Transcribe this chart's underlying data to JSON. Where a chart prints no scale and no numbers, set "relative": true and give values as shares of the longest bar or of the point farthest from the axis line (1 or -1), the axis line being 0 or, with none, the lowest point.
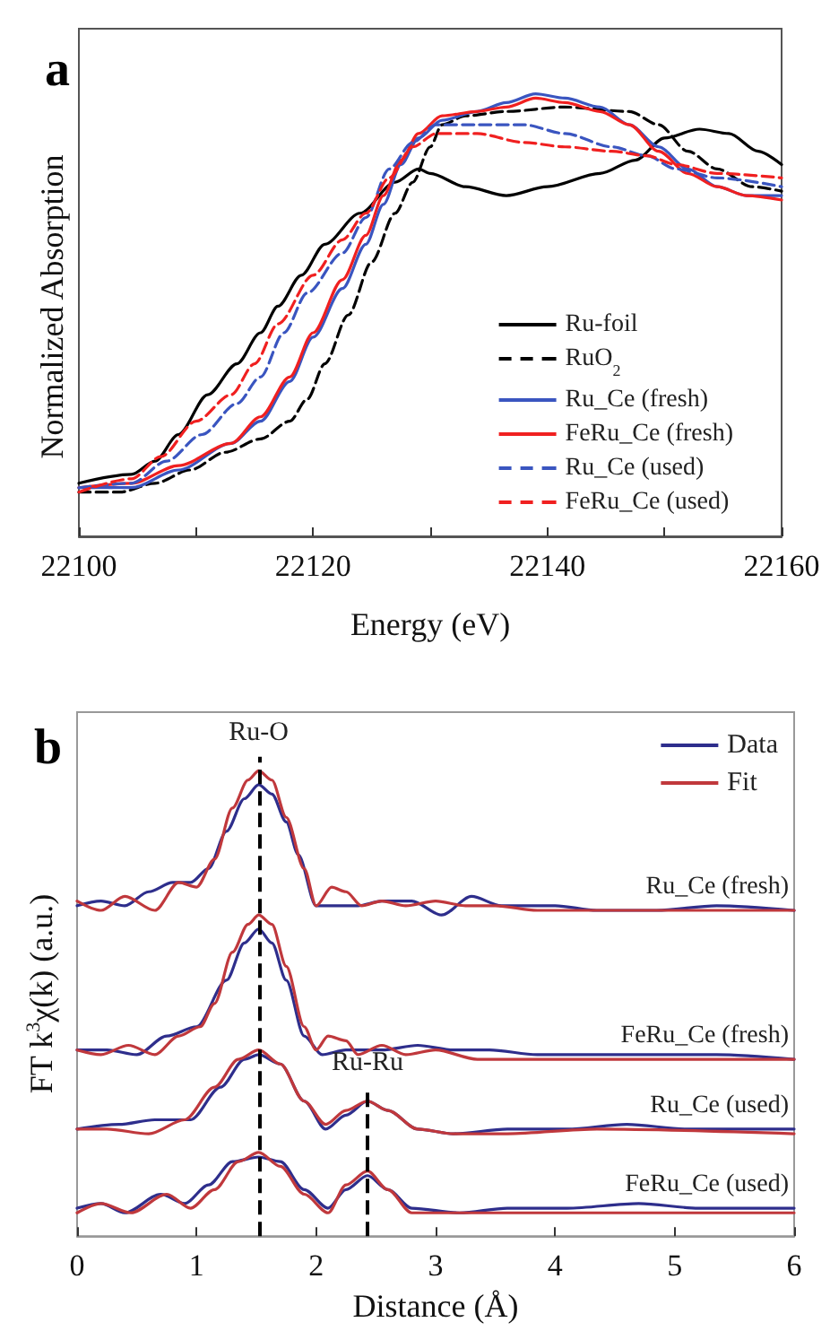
{
  "chart_data": [
    {
      "type": "line",
      "title": "a",
      "xlabel": "Energy (eV)",
      "ylabel": "Normalized Absorption",
      "relative": true,
      "tick_labels": "x",
      "marker": "none",
      "legend": "bottom right",
      "xlim": [
        22100,
        22160
      ],
      "xticks": [
        22100,
        {
          "value": 22110,
          "label": null
        },
        22120,
        {
          "value": 22130,
          "label": null
        },
        22140,
        {
          "value": 22150,
          "label": null
        },
        22160
      ],
      "series": [
        {
          "name": "Ru-foil",
          "color": "#000000",
          "line_style": "solid",
          "x": [
            22100,
            22104.5,
            22106.5,
            22108.5,
            22111,
            22113.5,
            22115.5,
            22117,
            22119,
            22121,
            22124,
            22127,
            22129,
            22130,
            22133,
            22136.5,
            22140,
            22144.5,
            22147.5,
            22150,
            22153,
            22155.5,
            22158,
            22160
          ],
          "values": [
            0.12,
            0.14,
            0.17,
            0.23,
            0.32,
            0.39,
            0.46,
            0.52,
            0.59,
            0.66,
            0.73,
            0.8,
            0.83,
            0.82,
            0.79,
            0.77,
            0.79,
            0.82,
            0.85,
            0.9,
            0.92,
            0.91,
            0.87,
            0.84
          ]
        },
        {
          "name": "RuO$_{2}$",
          "color": "#000000",
          "line_style": "dashed",
          "x": [
            22100,
            22103.5,
            22106.5,
            22109.5,
            22112.5,
            22115.5,
            22118,
            22119.5,
            22121,
            22123,
            22125,
            22127,
            22128.5,
            22130,
            22131,
            22133,
            22136.5,
            22141.5,
            22147,
            22149.5,
            22152,
            22154.5,
            22157.5,
            22160
          ],
          "values": [
            0.1,
            0.1,
            0.12,
            0.15,
            0.19,
            0.22,
            0.26,
            0.31,
            0.39,
            0.5,
            0.62,
            0.73,
            0.8,
            0.88,
            0.93,
            0.95,
            0.96,
            0.97,
            0.96,
            0.93,
            0.87,
            0.83,
            0.79,
            0.78
          ]
        },
        {
          "name": "Ru_Ce (fresh)",
          "color": "#3a55c0",
          "line_style": "solid",
          "x": [
            22100,
            22104.5,
            22108.5,
            22113,
            22115.5,
            22118,
            22120,
            22122.5,
            22124.5,
            22126,
            22127.5,
            22129,
            22131,
            22134,
            22136.5,
            22139,
            22141.5,
            22144.5,
            22147,
            22149.5,
            22152,
            22154.5,
            22157,
            22160
          ],
          "values": [
            0.11,
            0.11,
            0.15,
            0.21,
            0.26,
            0.35,
            0.45,
            0.56,
            0.66,
            0.75,
            0.84,
            0.9,
            0.94,
            0.96,
            0.98,
            1,
            0.99,
            0.97,
            0.93,
            0.88,
            0.83,
            0.79,
            0.77,
            0.77
          ]
        },
        {
          "name": "FeRu_Ce (fresh)",
          "color": "#f02020",
          "line_style": "solid",
          "x": [
            22100,
            22104.5,
            22108.5,
            22113,
            22115.5,
            22118,
            22120,
            22122.5,
            22124.5,
            22126,
            22127.5,
            22129,
            22131,
            22134,
            22136.5,
            22139,
            22141.5,
            22144.5,
            22147,
            22149.5,
            22152,
            22154.5,
            22157,
            22160
          ],
          "values": [
            0.11,
            0.12,
            0.16,
            0.21,
            0.27,
            0.36,
            0.46,
            0.58,
            0.68,
            0.77,
            0.85,
            0.91,
            0.95,
            0.96,
            0.97,
            0.99,
            0.98,
            0.96,
            0.93,
            0.87,
            0.82,
            0.79,
            0.77,
            0.76
          ]
        },
        {
          "name": "Ru_Ce (used)",
          "color": "#3a55c0",
          "line_style": "dashed",
          "x": [
            22100,
            22104.5,
            22107.5,
            22110.5,
            22113.5,
            22115.5,
            22117.5,
            22119.5,
            22122.5,
            22124.5,
            22126.5,
            22128.5,
            22130.5,
            22134,
            22138,
            22141.5,
            22145.5,
            22148.5,
            22151,
            22154.5,
            22160
          ],
          "values": [
            0.11,
            0.12,
            0.17,
            0.23,
            0.3,
            0.36,
            0.46,
            0.55,
            0.64,
            0.72,
            0.83,
            0.89,
            0.93,
            0.93,
            0.93,
            0.91,
            0.88,
            0.86,
            0.83,
            0.81,
            0.79
          ]
        },
        {
          "name": "FeRu_Ce (used)",
          "color": "#f02020",
          "line_style": "dashed",
          "x": [
            22100,
            22104.5,
            22107,
            22110,
            22113,
            22115,
            22117,
            22120,
            22122.5,
            22124.5,
            22126.5,
            22128.5,
            22130.5,
            22134,
            22138,
            22141.5,
            22145.5,
            22148.5,
            22151,
            22154.5,
            22160
          ],
          "values": [
            0.1,
            0.13,
            0.18,
            0.26,
            0.32,
            0.39,
            0.48,
            0.59,
            0.67,
            0.73,
            0.81,
            0.88,
            0.91,
            0.91,
            0.89,
            0.88,
            0.87,
            0.86,
            0.84,
            0.82,
            0.81
          ]
        }
      ]
    },
    {
      "type": "line",
      "title": "b",
      "xlabel": "Distance (Å)",
      "ylabel": "FT k$^{3}$χ(k) (a.u.)",
      "relative": true,
      "tick_labels": "x",
      "marker": "none",
      "legend": "top right",
      "xlim": [
        0,
        6
      ],
      "xticks": [
        0,
        1,
        2,
        3,
        4,
        5,
        6
      ],
      "ref_lines": [
        {
          "axis": "x",
          "value": 1.52,
          "label": "Ru-O",
          "color": "#000000",
          "line_style": "dashed"
        },
        {
          "axis": "x",
          "value": 2.43,
          "label": "Ru-Ru",
          "color": "#000000",
          "line_style": "dashed"
        }
      ],
      "annotations": [
        "Ru_Ce (fresh)",
        "FeRu_Ce (fresh)",
        "Ru_Ce (used)",
        "FeRu_Ce (used)"
      ],
      "series": [
        {
          "name": "Data",
          "color": "#2e2e8c",
          "x": [
            0,
            0.2,
            0.4,
            0.6,
            0.8,
            0.95,
            1.1,
            1.25,
            1.4,
            1.52,
            1.63,
            1.75,
            1.85,
            2,
            2.15,
            2.35,
            2.55,
            2.8,
            3.05,
            3.3,
            3.55,
            3.75,
            4,
            4.35,
            4.85,
            5.35,
            6
          ],
          "values": [
            0.71,
            0.72,
            0.71,
            0.74,
            0.76,
            0.76,
            0.79,
            0.87,
            0.94,
            0.97,
            0.95,
            0.89,
            0.82,
            0.71,
            0.71,
            0.71,
            0.72,
            0.72,
            0.69,
            0.73,
            0.71,
            0.71,
            0.71,
            0.7,
            0.7,
            0.71,
            0.7
          ]
        },
        {
          "name": "Fit",
          "color": "#c0383c",
          "x": [
            0,
            0.2,
            0.4,
            0.65,
            0.85,
            1,
            1.15,
            1.3,
            1.43,
            1.52,
            1.63,
            1.75,
            1.9,
            2,
            2.13,
            2.25,
            2.38,
            2.55,
            2.75,
            3,
            3.25,
            3.5,
            3.85,
            4.35,
            5.35,
            6
          ],
          "values": [
            0.72,
            0.7,
            0.73,
            0.7,
            0.76,
            0.75,
            0.81,
            0.92,
            0.98,
            1,
            0.98,
            0.9,
            0.79,
            0.71,
            0.75,
            0.74,
            0.71,
            0.72,
            0.71,
            0.72,
            0.71,
            0.71,
            0.7,
            0.7,
            0.7,
            0.7
          ]
        },
        {
          "color": "#2e2e8c",
          "x": [
            0,
            0.25,
            0.5,
            0.75,
            1,
            1.25,
            1.4,
            1.52,
            1.63,
            1.75,
            1.9,
            2.05,
            2.25,
            2.55,
            2.85,
            3.15,
            3.45,
            3.85,
            4.35,
            4.85,
            5.35,
            6
          ],
          "values": [
            0.4,
            0.4,
            0.39,
            0.43,
            0.45,
            0.55,
            0.63,
            0.66,
            0.63,
            0.55,
            0.43,
            0.39,
            0.4,
            0.4,
            0.41,
            0.4,
            0.4,
            0.39,
            0.39,
            0.39,
            0.39,
            0.38
          ]
        },
        {
          "color": "#c0383c",
          "x": [
            0,
            0.2,
            0.43,
            0.65,
            0.85,
            1.03,
            1.15,
            1.3,
            1.43,
            1.52,
            1.63,
            1.75,
            1.9,
            2,
            2.1,
            2.25,
            2.35,
            2.55,
            2.75,
            3,
            3.35,
            3.85,
            4.85,
            6
          ],
          "values": [
            0.4,
            0.39,
            0.41,
            0.39,
            0.43,
            0.45,
            0.5,
            0.61,
            0.67,
            0.69,
            0.67,
            0.58,
            0.45,
            0.4,
            0.43,
            0.42,
            0.39,
            0.41,
            0.39,
            0.4,
            0.38,
            0.38,
            0.38,
            0.38
          ]
        },
        {
          "color": "#2e2e8c",
          "x": [
            0,
            0.35,
            0.65,
            0.95,
            1.2,
            1.4,
            1.52,
            1.7,
            1.9,
            2.08,
            2.25,
            2.43,
            2.6,
            2.85,
            3.15,
            3.6,
            4.1,
            4.6,
            5.1,
            6
          ],
          "values": [
            0.23,
            0.24,
            0.25,
            0.25,
            0.32,
            0.38,
            0.39,
            0.37,
            0.29,
            0.23,
            0.26,
            0.29,
            0.27,
            0.23,
            0.22,
            0.23,
            0.23,
            0.24,
            0.23,
            0.23
          ]
        },
        {
          "color": "#c0383c",
          "x": [
            0,
            0.25,
            0.6,
            0.9,
            1.15,
            1.35,
            1.52,
            1.7,
            1.9,
            2.08,
            2.25,
            2.43,
            2.6,
            2.85,
            3.15,
            3.6,
            4.35,
            6
          ],
          "values": [
            0.23,
            0.23,
            0.22,
            0.25,
            0.32,
            0.38,
            0.4,
            0.37,
            0.29,
            0.24,
            0.27,
            0.29,
            0.27,
            0.23,
            0.22,
            0.22,
            0.23,
            0.22
          ]
        },
        {
          "color": "#2e2e8c",
          "x": [
            0,
            0.2,
            0.4,
            0.7,
            0.9,
            1.1,
            1.3,
            1.52,
            1.7,
            1.9,
            2.1,
            2.25,
            2.43,
            2.6,
            2.8,
            3.2,
            3.6,
            4.1,
            4.7,
            5.2,
            6
          ],
          "values": [
            0.06,
            0.07,
            0.05,
            0.09,
            0.07,
            0.11,
            0.16,
            0.17,
            0.16,
            0.1,
            0.06,
            0.1,
            0.13,
            0.1,
            0.06,
            0.05,
            0.06,
            0.06,
            0.07,
            0.06,
            0.06
          ]
        },
        {
          "color": "#c0383c",
          "x": [
            0,
            0.2,
            0.45,
            0.75,
            0.95,
            1.15,
            1.35,
            1.52,
            1.7,
            1.9,
            2.1,
            2.25,
            2.43,
            2.6,
            2.8,
            3.2,
            4,
            5,
            6
          ],
          "values": [
            0.05,
            0.07,
            0.05,
            0.09,
            0.06,
            0.1,
            0.16,
            0.18,
            0.15,
            0.09,
            0.05,
            0.11,
            0.14,
            0.1,
            0.05,
            0.05,
            0.05,
            0.05,
            0.05
          ]
        }
      ]
    }
  ]
}
